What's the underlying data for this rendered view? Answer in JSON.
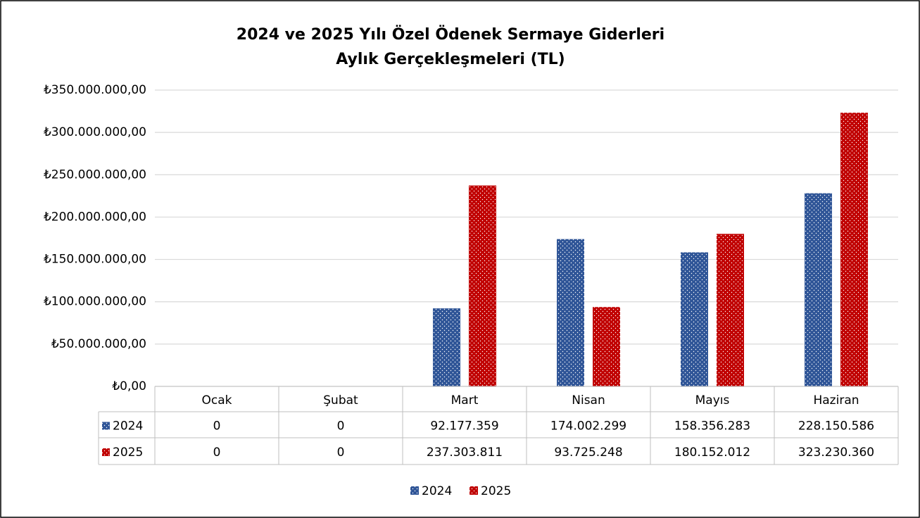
{
  "chart_data": {
    "type": "bar",
    "title": [
      "2024 ve 2025 Yılı Özel Ödenek Sermaye Giderleri",
      "Aylık Gerçekleşmeleri (TL)"
    ],
    "categories": [
      "Ocak",
      "Şubat",
      "Mart",
      "Nisan",
      "Mayıs",
      "Haziran"
    ],
    "series": [
      {
        "name": "2024",
        "color": "#2f5597",
        "values": [
          0,
          0,
          92177359,
          174002299,
          158356283,
          228150586
        ],
        "value_labels": [
          "0",
          "0",
          "92.177.359",
          "174.002.299",
          "158.356.283",
          "228.150.586"
        ]
      },
      {
        "name": "2025",
        "color": "#c00000",
        "values": [
          0,
          0,
          237303811,
          93725248,
          180152012,
          323230360
        ],
        "value_labels": [
          "0",
          "0",
          "237.303.811",
          "93.725.248",
          "180.152.012",
          "323.230.360"
        ]
      }
    ],
    "ylim": [
      0,
      350000000
    ],
    "yticks": [
      {
        "value": 0,
        "label": "₺0,00"
      },
      {
        "value": 50000000,
        "label": "₺50.000.000,00"
      },
      {
        "value": 100000000,
        "label": "₺100.000.000,00"
      },
      {
        "value": 150000000,
        "label": "₺150.000.000,00"
      },
      {
        "value": 200000000,
        "label": "₺200.000.000,00"
      },
      {
        "value": 250000000,
        "label": "₺250.000.000,00"
      },
      {
        "value": 300000000,
        "label": "₺300.000.000,00"
      },
      {
        "value": 350000000,
        "label": "₺350.000.000,00"
      }
    ],
    "grid": true,
    "legend": "bottom",
    "data_table": true
  }
}
